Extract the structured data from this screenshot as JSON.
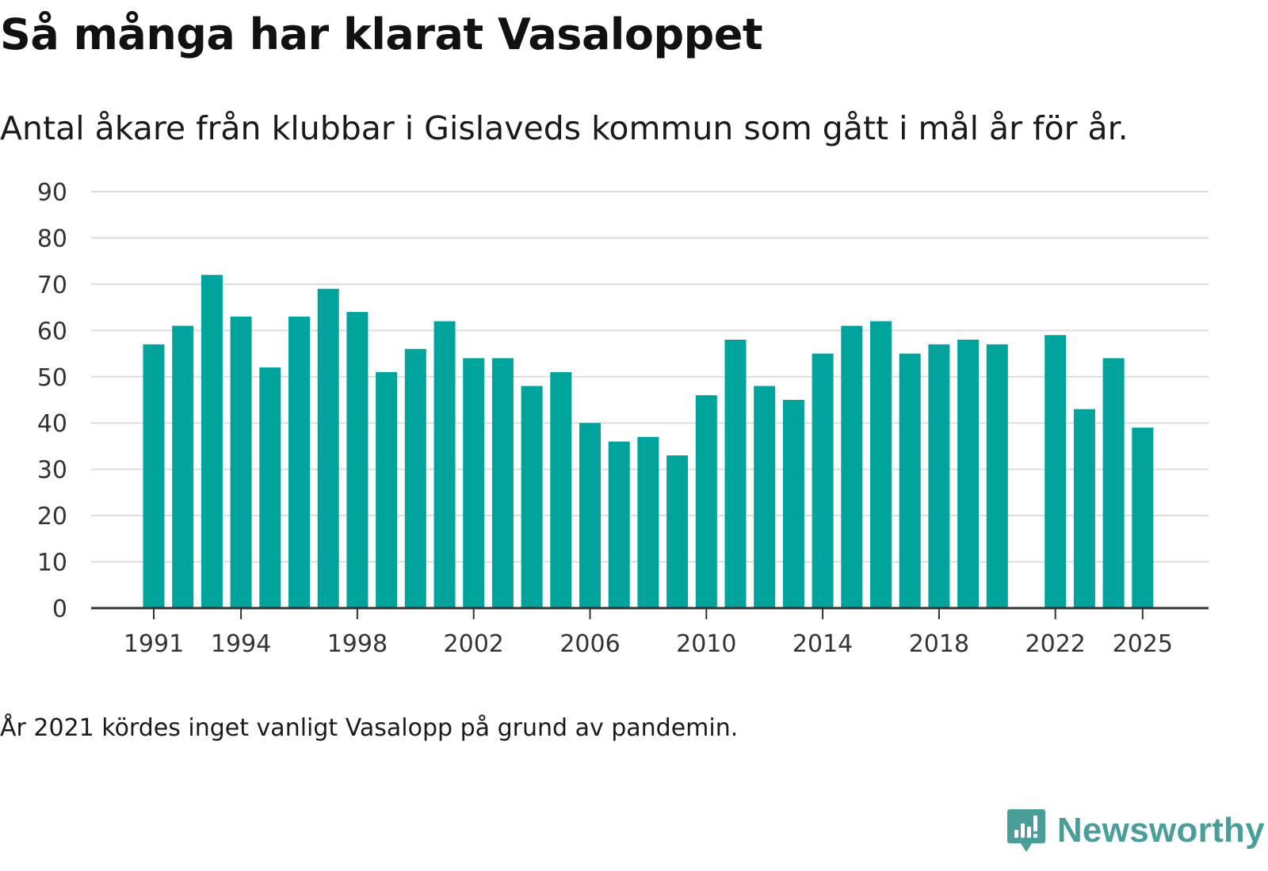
{
  "title": "Så många har klarat Vasaloppet",
  "subtitle": "Antal åkare från klubbar i Gislaveds kommun som gått i mål år för år.",
  "note": "År 2021 kördes inget vanligt Vasalopp på grund av pandemin.",
  "brand": {
    "name": "Newsworthy",
    "color": "#4a9e9a"
  },
  "colors": {
    "bar": "#00a49c",
    "grid": "#dddddd",
    "axis": "#333333"
  },
  "chart_data": {
    "type": "bar",
    "title": "Så många har klarat Vasaloppet",
    "xlabel": "",
    "ylabel": "",
    "ylim": [
      0,
      90
    ],
    "yticks": [
      0,
      10,
      20,
      30,
      40,
      50,
      60,
      70,
      80,
      90
    ],
    "xticks": [
      1991,
      1994,
      1998,
      2002,
      2006,
      2010,
      2014,
      2018,
      2022,
      2025
    ],
    "grid": true,
    "categories": [
      1991,
      1992,
      1993,
      1994,
      1995,
      1996,
      1997,
      1998,
      1999,
      2000,
      2001,
      2002,
      2003,
      2004,
      2005,
      2006,
      2007,
      2008,
      2009,
      2010,
      2011,
      2012,
      2013,
      2014,
      2015,
      2016,
      2017,
      2018,
      2019,
      2020,
      2021,
      2022,
      2023,
      2024,
      2025
    ],
    "values": [
      57,
      61,
      72,
      63,
      52,
      63,
      69,
      64,
      51,
      56,
      62,
      54,
      54,
      48,
      51,
      40,
      36,
      37,
      33,
      46,
      58,
      48,
      45,
      55,
      61,
      62,
      55,
      57,
      58,
      57,
      null,
      59,
      43,
      54,
      39
    ]
  }
}
